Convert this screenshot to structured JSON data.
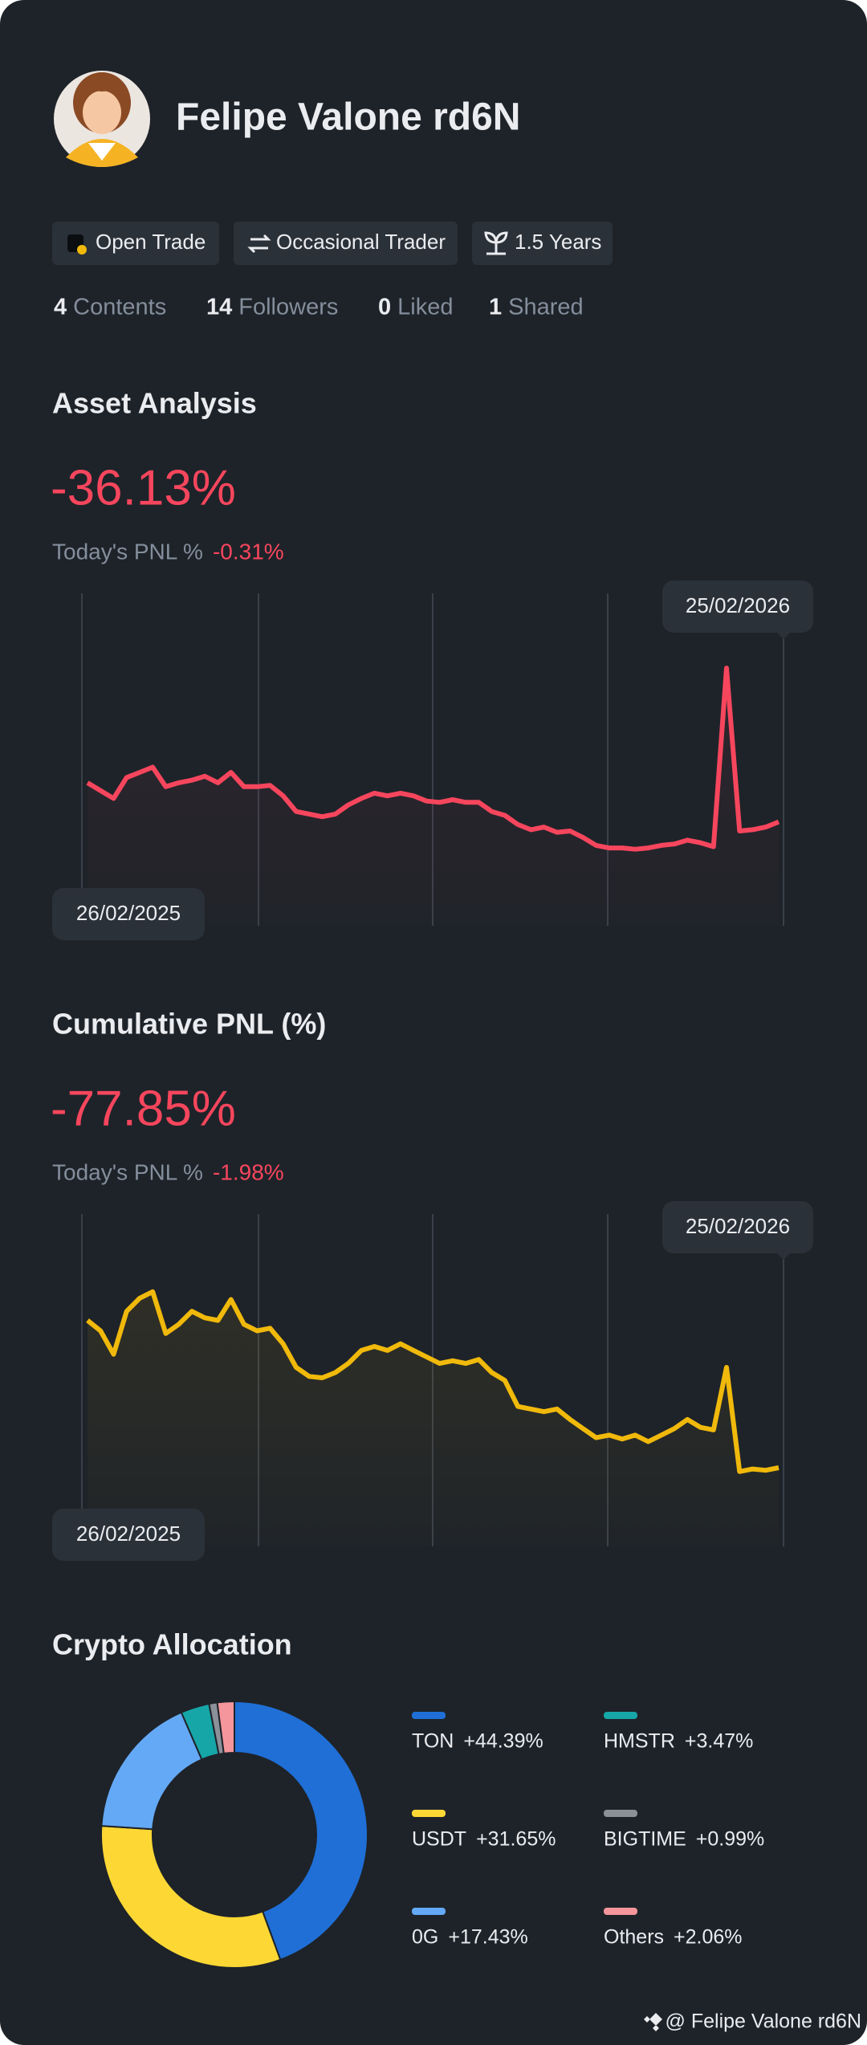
{
  "profile": {
    "name": "Felipe Valone rd6N",
    "tags": [
      "Open Trade",
      "Occasional Trader",
      "1.5 Years"
    ],
    "stats": [
      {
        "value": "4",
        "label": "Contents"
      },
      {
        "value": "14",
        "label": "Followers"
      },
      {
        "value": "0",
        "label": "Liked"
      },
      {
        "value": "1",
        "label": "Shared"
      }
    ]
  },
  "chart_data": [
    {
      "type": "line",
      "title": "Asset Analysis",
      "headline": "-36.13%",
      "pnl_label": "Today's PNL %",
      "pnl_value": "-0.31%",
      "start_label": "26/02/2025",
      "end_label": "25/02/2026",
      "color": "#f6465d",
      "ylim": [
        -68,
        34
      ],
      "values": [
        -24.13,
        -26.53,
        -28.93,
        -22.53,
        -20.93,
        -19.33,
        -25.33,
        -24.13,
        -23.33,
        -22.13,
        -24.13,
        -20.93,
        -25.33,
        -25.33,
        -24.93,
        -28.13,
        -32.93,
        -33.73,
        -34.53,
        -33.73,
        -30.93,
        -28.93,
        -27.33,
        -28.13,
        -27.33,
        -28.13,
        -29.73,
        -30.13,
        -29.33,
        -30.13,
        -30.13,
        -32.93,
        -34.13,
        -36.93,
        -38.53,
        -37.73,
        -39.33,
        -38.93,
        -40.93,
        -43.33,
        -44.13,
        -44.13,
        -44.53,
        -44.13,
        -43.33,
        -42.93,
        -41.73,
        -42.53,
        -43.73,
        11.07,
        -38.93,
        -38.53,
        -37.73,
        -36.13
      ]
    },
    {
      "type": "line",
      "title": "Cumulative PNL (%)",
      "headline": "-77.85%",
      "pnl_label": "Today's PNL %",
      "pnl_value": "-1.98%",
      "start_label": "26/02/2025",
      "end_label": "25/02/2026",
      "color": "#f0b90b",
      "ylim": [
        -102,
        0
      ],
      "values": [
        -32.65,
        -35.85,
        -43.05,
        -29.85,
        -25.85,
        -23.85,
        -36.65,
        -33.85,
        -29.85,
        -31.85,
        -32.65,
        -26.25,
        -33.85,
        -35.85,
        -35.05,
        -39.85,
        -47.05,
        -49.85,
        -50.25,
        -48.65,
        -45.85,
        -41.85,
        -40.65,
        -41.85,
        -39.85,
        -41.85,
        -43.85,
        -45.85,
        -45.05,
        -45.85,
        -44.65,
        -48.65,
        -51.05,
        -59.05,
        -59.85,
        -60.65,
        -59.85,
        -63.05,
        -65.85,
        -68.65,
        -67.85,
        -69.05,
        -67.85,
        -69.85,
        -67.85,
        -65.85,
        -63.05,
        -65.45,
        -66.25,
        -47.05,
        -79.05,
        -78.25,
        -78.65,
        -77.85
      ]
    },
    {
      "type": "pie",
      "title": "Crypto Allocation",
      "categories": [
        "TON",
        "USDT",
        "0G",
        "HMSTR",
        "BIGTIME",
        "Others"
      ],
      "values": [
        44.39,
        31.65,
        17.43,
        3.47,
        0.99,
        2.06
      ],
      "value_labels": [
        "+44.39%",
        "+31.65%",
        "+17.43%",
        "+3.47%",
        "+0.99%",
        "+2.06%"
      ],
      "colors": [
        "#1f6fd6",
        "#fdd835",
        "#64a9f6",
        "#16a6a8",
        "#8b9099",
        "#f5969c"
      ]
    }
  ],
  "footer": "@ Felipe Valone rd6N"
}
